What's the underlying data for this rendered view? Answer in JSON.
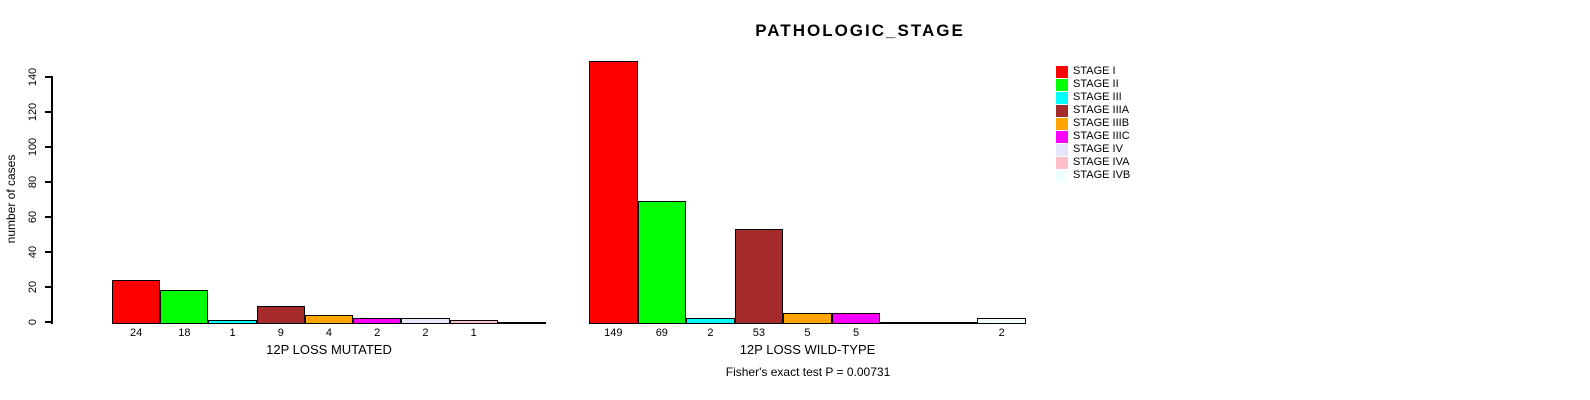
{
  "chart_data": {
    "type": "bar",
    "title": "PATHOLOGIC_STAGE",
    "xlabel": "",
    "ylabel": "number of cases",
    "ylim": [
      0,
      140
    ],
    "yticks": [
      0,
      20,
      40,
      60,
      80,
      100,
      120,
      140
    ],
    "grid": false,
    "legend_position": "right",
    "categories": [
      "12P LOSS MUTATED",
      "12P LOSS WILD-TYPE"
    ],
    "series": [
      {
        "name": "STAGE I",
        "color": "#FF0000",
        "values": [
          24,
          149
        ]
      },
      {
        "name": "STAGE II",
        "color": "#00FF00",
        "values": [
          18,
          69
        ]
      },
      {
        "name": "STAGE III",
        "color": "#00FFFF",
        "values": [
          1,
          2
        ]
      },
      {
        "name": "STAGE IIIA",
        "color": "#A52A2A",
        "values": [
          9,
          53
        ]
      },
      {
        "name": "STAGE IIIB",
        "color": "#FFA500",
        "values": [
          4,
          5
        ]
      },
      {
        "name": "STAGE IIIC",
        "color": "#FF00FF",
        "values": [
          2,
          5
        ]
      },
      {
        "name": "STAGE IV",
        "color": "#E6E6FA",
        "values": [
          2,
          0
        ]
      },
      {
        "name": "STAGE IVA",
        "color": "#FFC0CB",
        "values": [
          1,
          0
        ]
      },
      {
        "name": "STAGE IVB",
        "color": "#F0FFFF",
        "values": [
          0,
          2
        ]
      }
    ],
    "annotation": "Fisher's exact test P = 0.00731"
  }
}
